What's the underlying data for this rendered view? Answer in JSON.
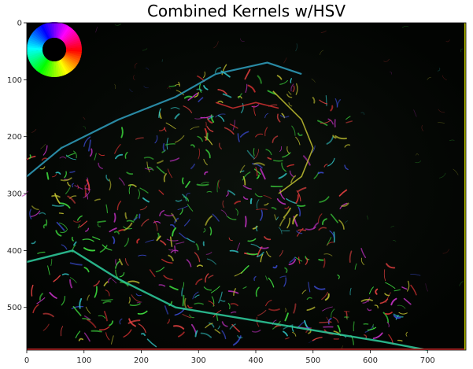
{
  "title": "Combined Kernels w/HSV",
  "axes": {
    "x_ticks": [
      "0",
      "100",
      "200",
      "300",
      "400",
      "500",
      "600",
      "700"
    ],
    "y_ticks": [
      "0",
      "100",
      "200",
      "300",
      "400",
      "500"
    ],
    "x_range": [
      0,
      767
    ],
    "y_range": [
      0,
      575
    ]
  },
  "image": {
    "description_colors": {
      "background": "#050805",
      "edge_green": "#3ad13a",
      "edge_red": "#d03030",
      "edge_blue": "#3a4ad0",
      "edge_magenta": "#c030c0",
      "edge_cyan": "#30c0c0"
    }
  },
  "color_wheel": {
    "colors": [
      "#ff0000",
      "#ffff00",
      "#00ff00",
      "#00ffff",
      "#0000ff",
      "#ff00ff"
    ]
  }
}
